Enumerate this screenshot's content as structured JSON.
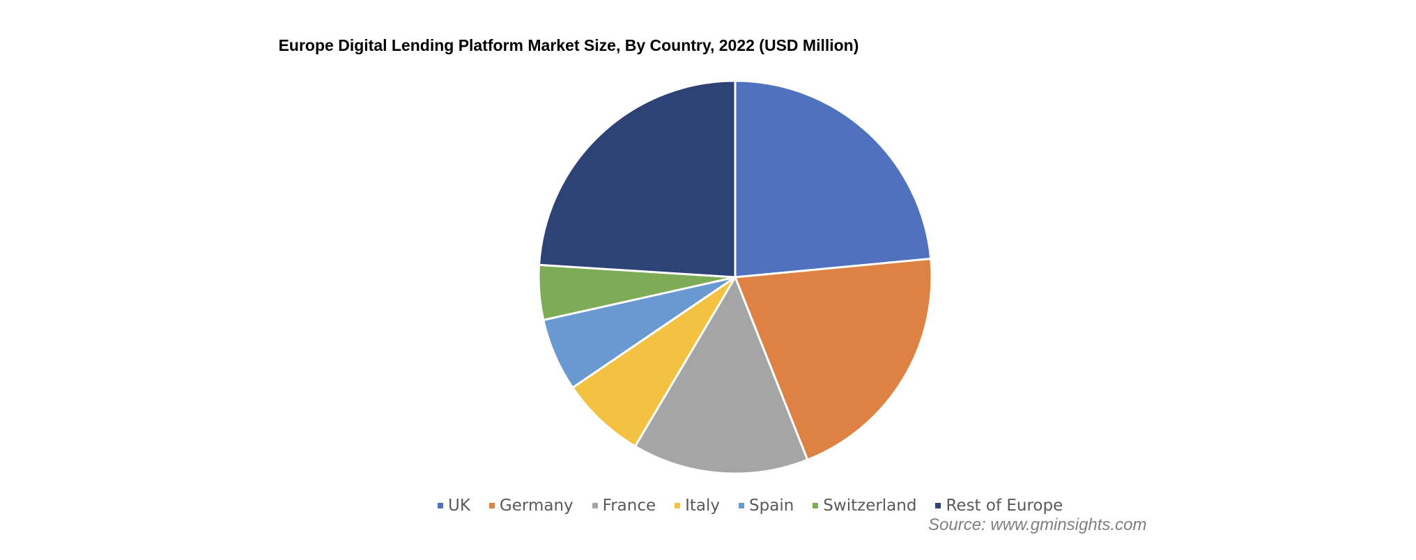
{
  "chart_data": {
    "type": "pie",
    "title": "Europe  Digital  Lending  Platform Market Size, By  Country,  2022 (USD Million)",
    "categories": [
      "UK",
      "Germany",
      "France",
      "Italy",
      "Spain",
      "Switzerland",
      "Rest of Europe"
    ],
    "values": [
      23.5,
      20.5,
      14.5,
      7.0,
      6.0,
      4.5,
      24.0
    ],
    "colors": [
      "#4f71be",
      "#de8244",
      "#a5a5a5",
      "#f4c242",
      "#6a98d0",
      "#7eab55",
      "#2d4375"
    ],
    "legend_position": "bottom",
    "source": "Source: www.gminsights.com"
  }
}
